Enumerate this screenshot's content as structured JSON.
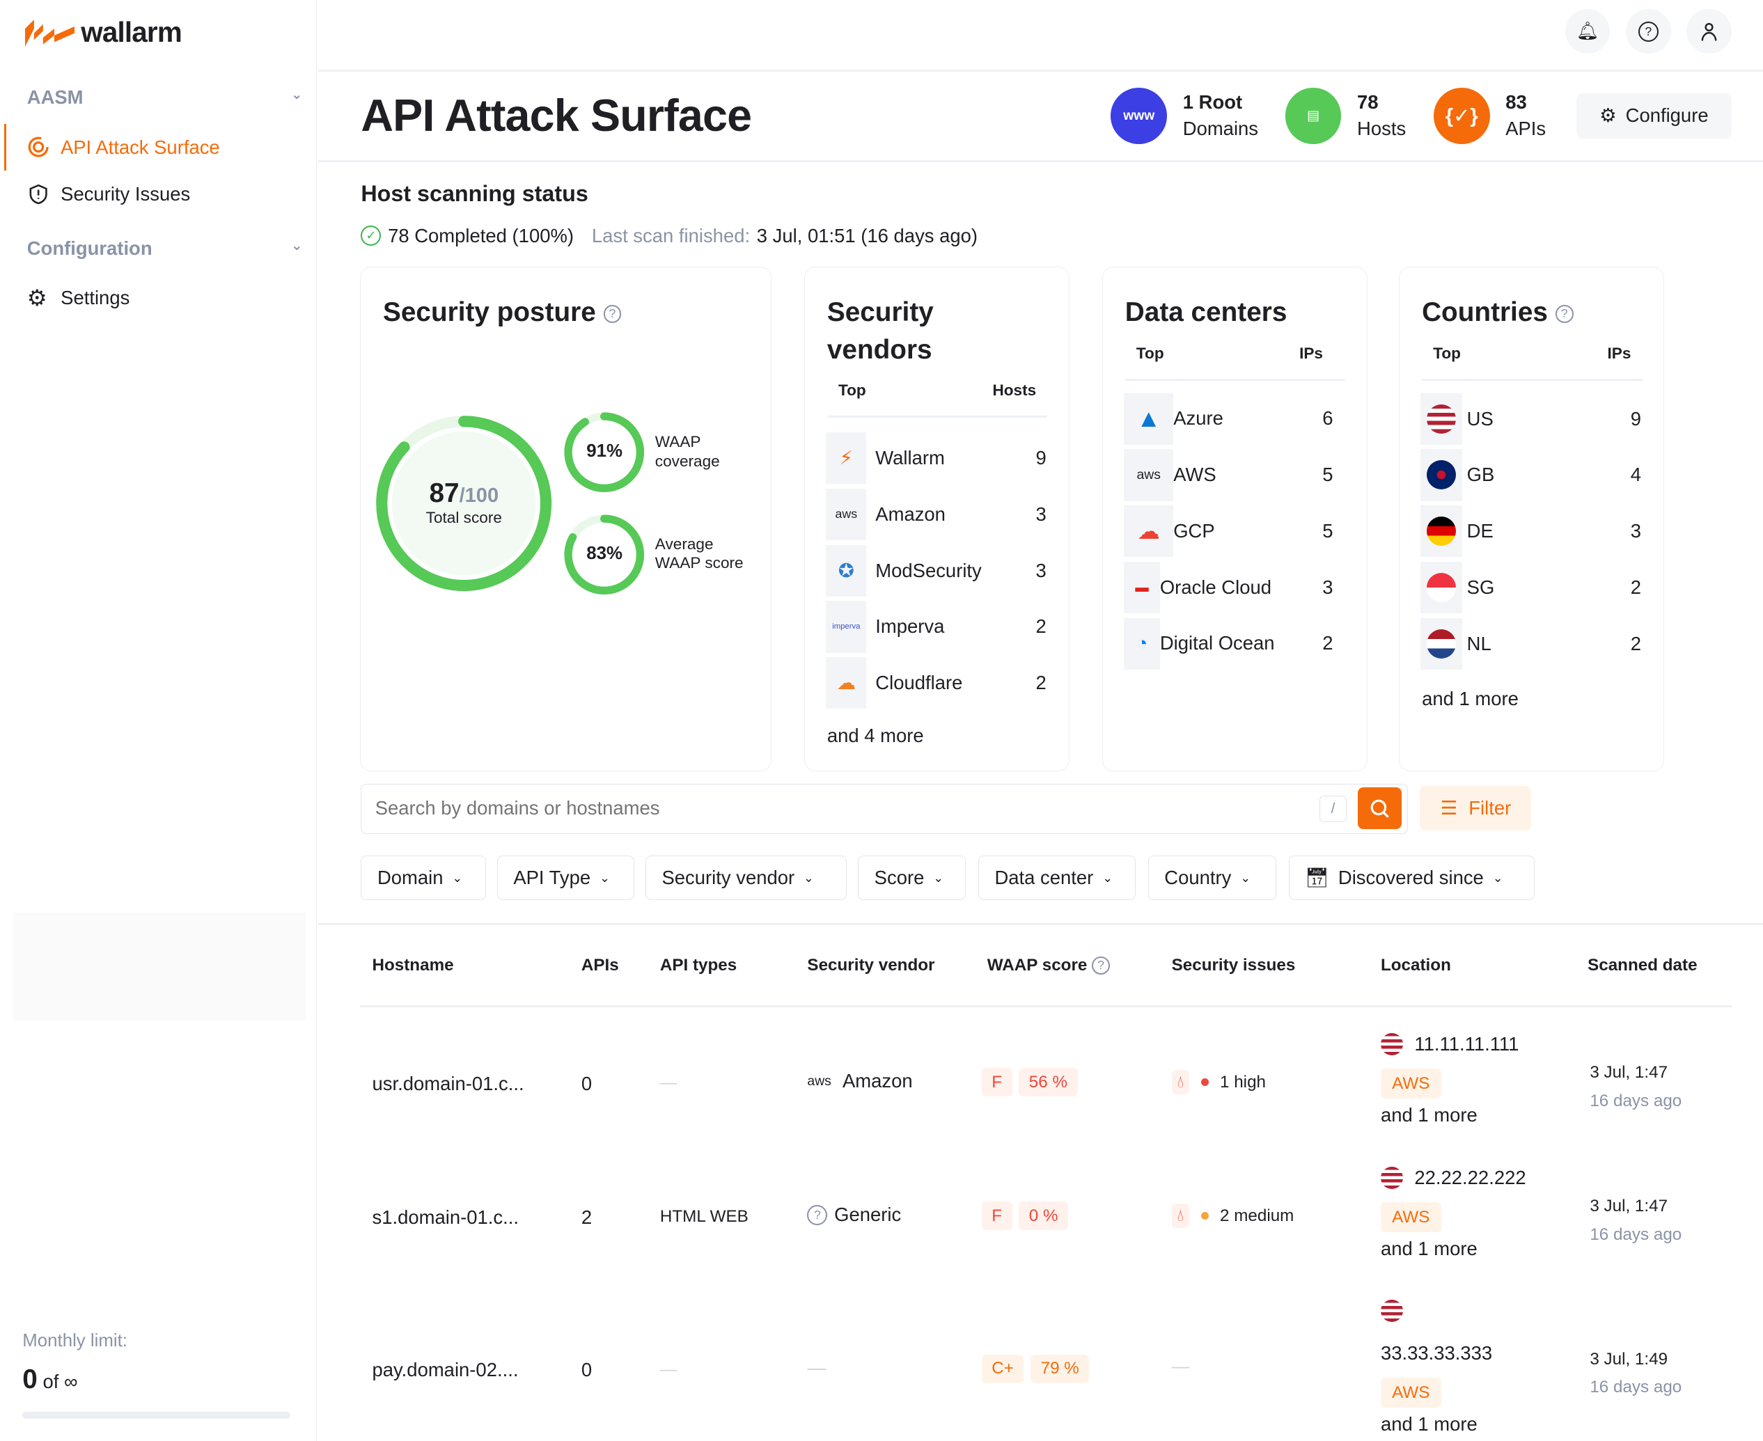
{
  "brand": {
    "name": "wallarm",
    "color": "#f56b0a"
  },
  "sidebar": {
    "sections": [
      {
        "label": "AASM"
      },
      {
        "label": "Configuration"
      }
    ],
    "items": [
      {
        "label": "API Attack Surface",
        "icon": "target-icon",
        "active": true
      },
      {
        "label": "Security Issues",
        "icon": "shield-icon"
      },
      {
        "label": "Settings",
        "icon": "gear-icon"
      }
    ],
    "limit_label": "Monthly limit:",
    "limit_value": "0",
    "limit_of": "of ∞",
    "limit_fraction": 0
  },
  "topbar": {
    "icons": [
      "bell-icon",
      "help-icon",
      "user-icon"
    ]
  },
  "header": {
    "title": "API Attack Surface",
    "stats": [
      {
        "value": "1 Root",
        "label": "Domains",
        "icon": "www-icon",
        "color": "#3b3fe4"
      },
      {
        "value": "78",
        "label": "Hosts",
        "icon": "server-icon",
        "color": "#56c956"
      },
      {
        "value": "83",
        "label": "APIs",
        "icon": "api-icon",
        "color": "#f56b0a"
      }
    ],
    "configure": "Configure"
  },
  "scan": {
    "title": "Host scanning status",
    "completed": "78 Completed (100%)",
    "last_label": "Last scan finished:",
    "last_value": "3 Jul, 01:51 (16 days ago)"
  },
  "posture": {
    "title": "Security posture",
    "score": "87",
    "max": "/100",
    "score_label": "Total score",
    "score_value": 87,
    "waap_cov": "91%",
    "waap_cov_value": 91,
    "waap_cov_label": "WAAP coverage",
    "waap_avg": "83%",
    "waap_avg_value": 83,
    "waap_avg_label": "Average WAAP score"
  },
  "vendors": {
    "title": "Security vendors",
    "col1": "Top",
    "col2": "Hosts",
    "items": [
      {
        "name": "Wallarm",
        "count": "9"
      },
      {
        "name": "Amazon",
        "count": "3"
      },
      {
        "name": "ModSecurity",
        "count": "3"
      },
      {
        "name": "Imperva",
        "count": "2"
      },
      {
        "name": "Cloudflare",
        "count": "2"
      }
    ],
    "more": "and 4 more"
  },
  "datacenters": {
    "title": "Data centers",
    "col1": "Top",
    "col2": "IPs",
    "items": [
      {
        "name": "Azure",
        "count": "6"
      },
      {
        "name": "AWS",
        "count": "5"
      },
      {
        "name": "GCP",
        "count": "5"
      },
      {
        "name": "Oracle Cloud",
        "count": "3"
      },
      {
        "name": "Digital Ocean",
        "count": "2"
      }
    ]
  },
  "countries": {
    "title": "Countries",
    "col1": "Top",
    "col2": "IPs",
    "items": [
      {
        "name": "US",
        "count": "9"
      },
      {
        "name": "GB",
        "count": "4"
      },
      {
        "name": "DE",
        "count": "3"
      },
      {
        "name": "SG",
        "count": "2"
      },
      {
        "name": "NL",
        "count": "2"
      }
    ],
    "more": "and 1 more"
  },
  "search": {
    "placeholder": "Search by domains or hostnames",
    "shortcut": "/",
    "filter": "Filter"
  },
  "filters": [
    "Domain",
    "API Type",
    "Security vendor",
    "Score",
    "Data center",
    "Country",
    "Discovered since"
  ],
  "table": {
    "columns": [
      "Hostname",
      "APIs",
      "API types",
      "Security vendor",
      "WAAP score",
      "Security issues",
      "Location",
      "Scanned date"
    ],
    "rows": [
      {
        "hostname": "usr.domain-01.c...",
        "apis": "0",
        "types": "—",
        "vendor": "Amazon",
        "grade": "F",
        "score": "56 %",
        "issue": "1 high",
        "issue_color": "#f0463a",
        "ip": "11.11.11.111",
        "dc": "AWS",
        "more": "and 1 more",
        "date": "3 Jul, 1:47",
        "ago": "16 days ago"
      },
      {
        "hostname": "s1.domain-01.c...",
        "apis": "2",
        "types": "HTML WEB",
        "vendor": "Generic",
        "grade": "F",
        "score": "0 %",
        "issue": "2 medium",
        "issue_color": "#f7a23b",
        "ip": "22.22.22.222",
        "dc": "AWS",
        "more": "and 1 more",
        "date": "3 Jul, 1:47",
        "ago": "16 days ago"
      },
      {
        "hostname": "pay.domain-02....",
        "apis": "0",
        "types": "—",
        "vendor": "—",
        "grade": "C+",
        "score": "79 %",
        "issue": "—",
        "ip": "33.33.33.333",
        "dc": "AWS",
        "more": "and 1 more",
        "date": "3 Jul, 1:49",
        "ago": "16 days ago"
      }
    ]
  }
}
